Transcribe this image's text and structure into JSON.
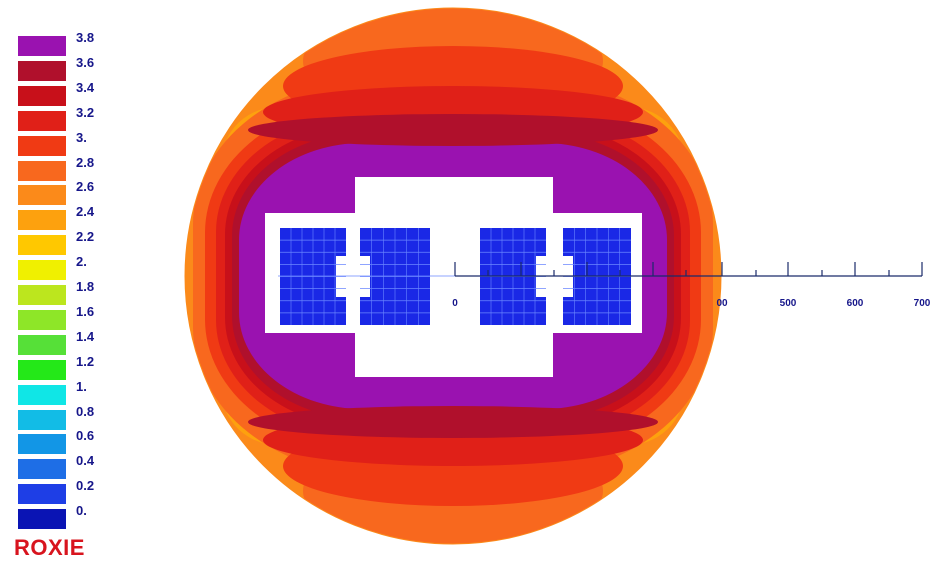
{
  "legend": {
    "items": [
      {
        "label": "3.8",
        "color": "#9a12b0"
      },
      {
        "label": "3.6",
        "color": "#b0102c"
      },
      {
        "label": "3.4",
        "color": "#c8101a"
      },
      {
        "label": "3.2",
        "color": "#e02018"
      },
      {
        "label": "3.",
        "color": "#f03a14"
      },
      {
        "label": "2.8",
        "color": "#f8681e"
      },
      {
        "label": "2.6",
        "color": "#fb8a1a"
      },
      {
        "label": "2.4",
        "color": "#fda10e"
      },
      {
        "label": "2.2",
        "color": "#ffc800"
      },
      {
        "label": "2.",
        "color": "#f0f000"
      },
      {
        "label": "1.8",
        "color": "#bce61e"
      },
      {
        "label": "1.6",
        "color": "#8ee628"
      },
      {
        "label": "1.4",
        "color": "#56e038"
      },
      {
        "label": "1.2",
        "color": "#24e818"
      },
      {
        "label": "1.",
        "color": "#10e6e6"
      },
      {
        "label": "0.8",
        "color": "#12bce6"
      },
      {
        "label": "0.6",
        "color": "#1296e6"
      },
      {
        "label": "0.4",
        "color": "#1e6ee6"
      },
      {
        "label": "0.2",
        "color": "#1e3ee6"
      },
      {
        "label": "0.",
        "color": "#0a14b4"
      }
    ]
  },
  "scale": {
    "labels": [
      "0",
      "00",
      "500",
      "600",
      "700"
    ]
  },
  "colors": {
    "block": "#1a28e6",
    "block_line": "#6a86ff",
    "white_box": "#ffffff",
    "scale_text": "#16168a"
  },
  "brand": {
    "text": "ROXIE"
  }
}
